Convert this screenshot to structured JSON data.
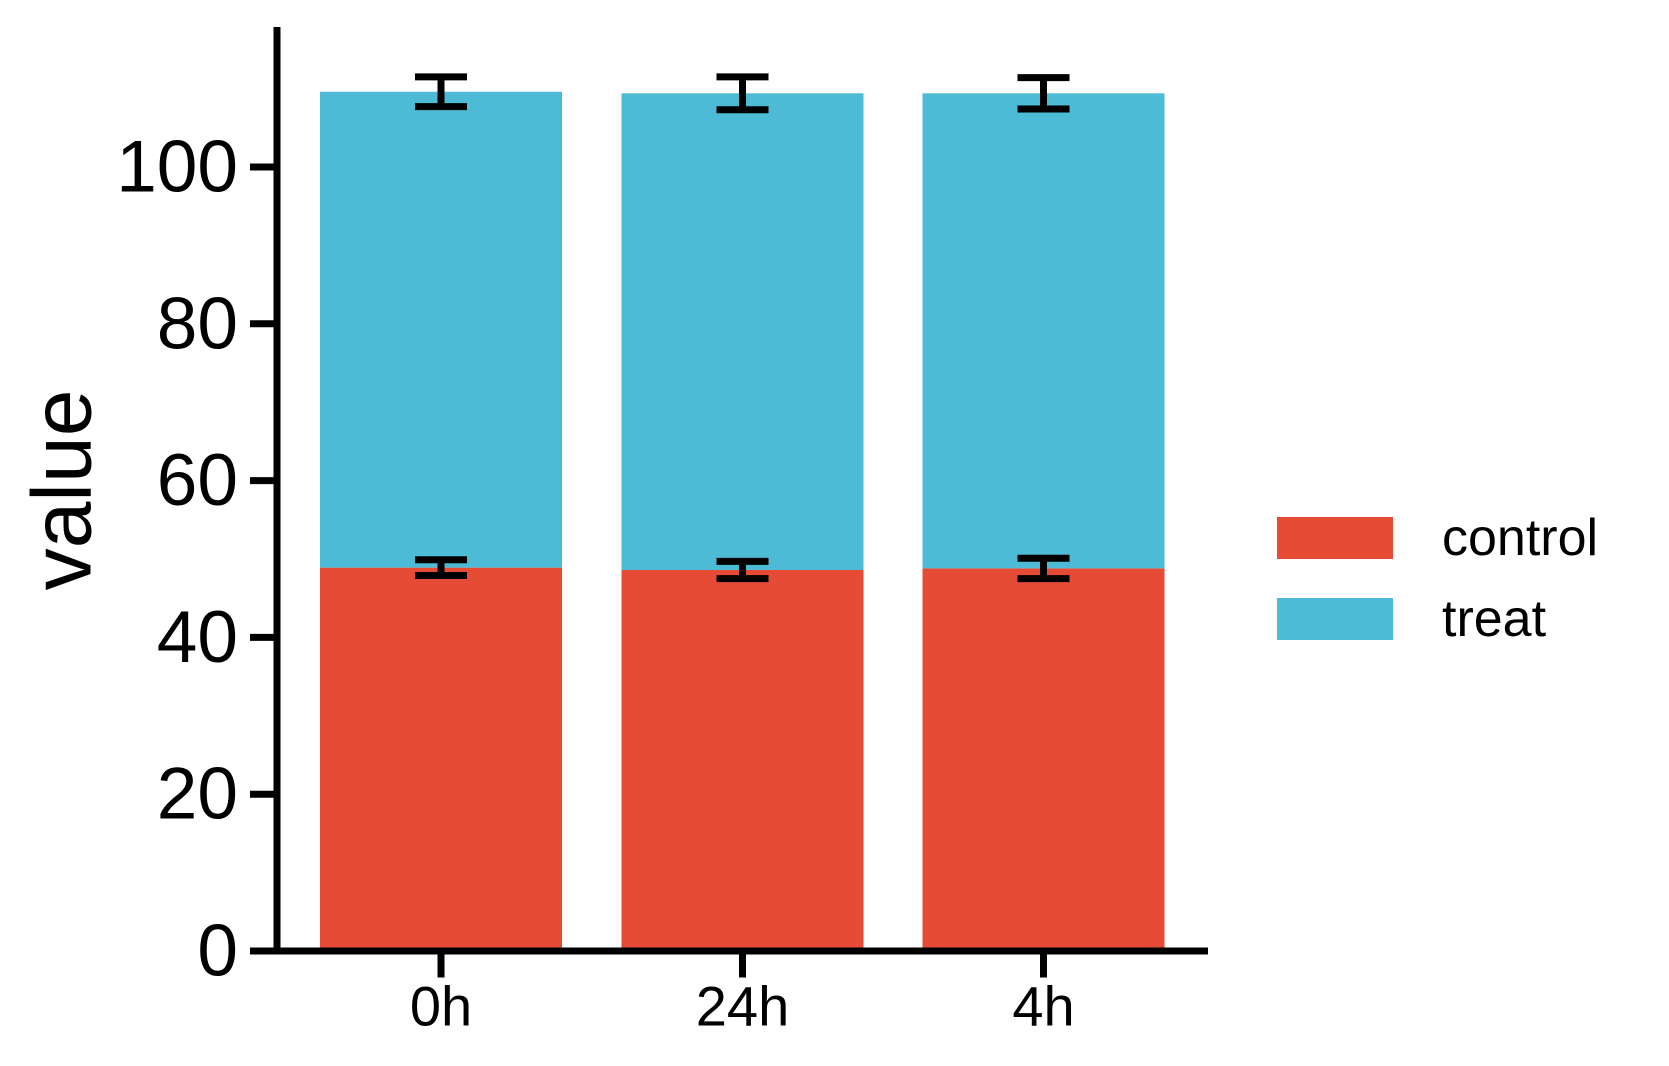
{
  "chart_data": {
    "type": "bar",
    "subtype": "stacked",
    "title": "",
    "xlabel": "",
    "ylabel": "value",
    "categories": [
      "0h",
      "24h",
      "4h"
    ],
    "series": [
      {
        "name": "control",
        "color": "#E64B35",
        "values": [
          48.9,
          48.6,
          48.8
        ],
        "errors": [
          1.0,
          1.1,
          1.3
        ]
      },
      {
        "name": "treat",
        "color": "#4DBBD5",
        "values": [
          60.7,
          60.8,
          60.6
        ],
        "errors": [
          1.9,
          2.1,
          2.0
        ]
      }
    ],
    "stack_totals": [
      109.6,
      109.4,
      109.4
    ],
    "error_bar_style": "black whiskers with caps, drawn at top of each cumulative stack segment",
    "yticks": [
      0,
      20,
      40,
      60,
      80,
      100
    ],
    "ylim": [
      0,
      117
    ],
    "grid": false,
    "axis_color": "#000000",
    "legend_position": "right-center",
    "legend_title": ""
  }
}
